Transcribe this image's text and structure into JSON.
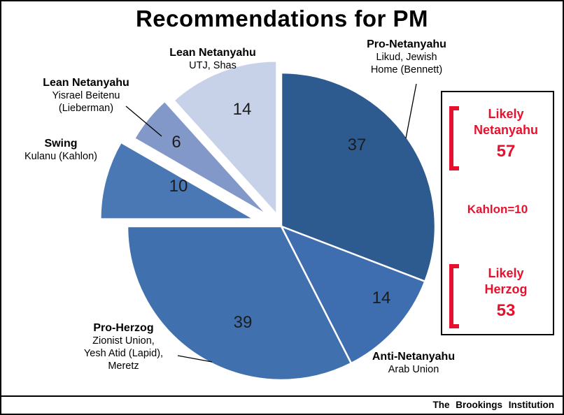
{
  "attribution": "The Brookings Institution",
  "colors": {
    "accent_red": "#e8112d",
    "outline": "#000000",
    "slice_stroke": "#ffffff"
  },
  "chart_data": {
    "type": "pie",
    "title": "Recommendations for PM",
    "direction": "clockwise",
    "start_angle_deg": 0,
    "slices": [
      {
        "label": "Pro-Netanyahu",
        "sublabel": "Likud, Jewish\nHome (Bennett)",
        "value": 37,
        "color": "#2e5b8f",
        "explode": 0
      },
      {
        "label": "Anti-Netanyahu",
        "sublabel": "Arab Union",
        "value": 14,
        "color": "#3e6db0",
        "explode": 0
      },
      {
        "label": "Pro-Herzog",
        "sublabel": "Zionist Union,\nYesh Atid (Lapid),\nMeretz",
        "value": 39,
        "color": "#4170ae",
        "explode": 0
      },
      {
        "label": "Swing",
        "sublabel": "Kulanu (Kahlon)",
        "value": 10,
        "color": "#4a78b5",
        "explode": 40
      },
      {
        "label": "Lean Netanyahu",
        "sublabel": "Yisrael Beitenu\n(Lieberman)",
        "value": 6,
        "color": "#8298c8",
        "explode": 25
      },
      {
        "label": "Lean Netanyahu",
        "sublabel": "UTJ, Shas",
        "value": 14,
        "color": "#c7d2e8",
        "explode": 18
      }
    ],
    "annotations": {
      "likely_netanyahu_label": "Likely\nNetanyahu",
      "likely_netanyahu_value": "57",
      "kahlon_note": "Kahlon=10",
      "likely_herzog_label": "Likely\nHerzog",
      "likely_herzog_value": "53"
    }
  }
}
